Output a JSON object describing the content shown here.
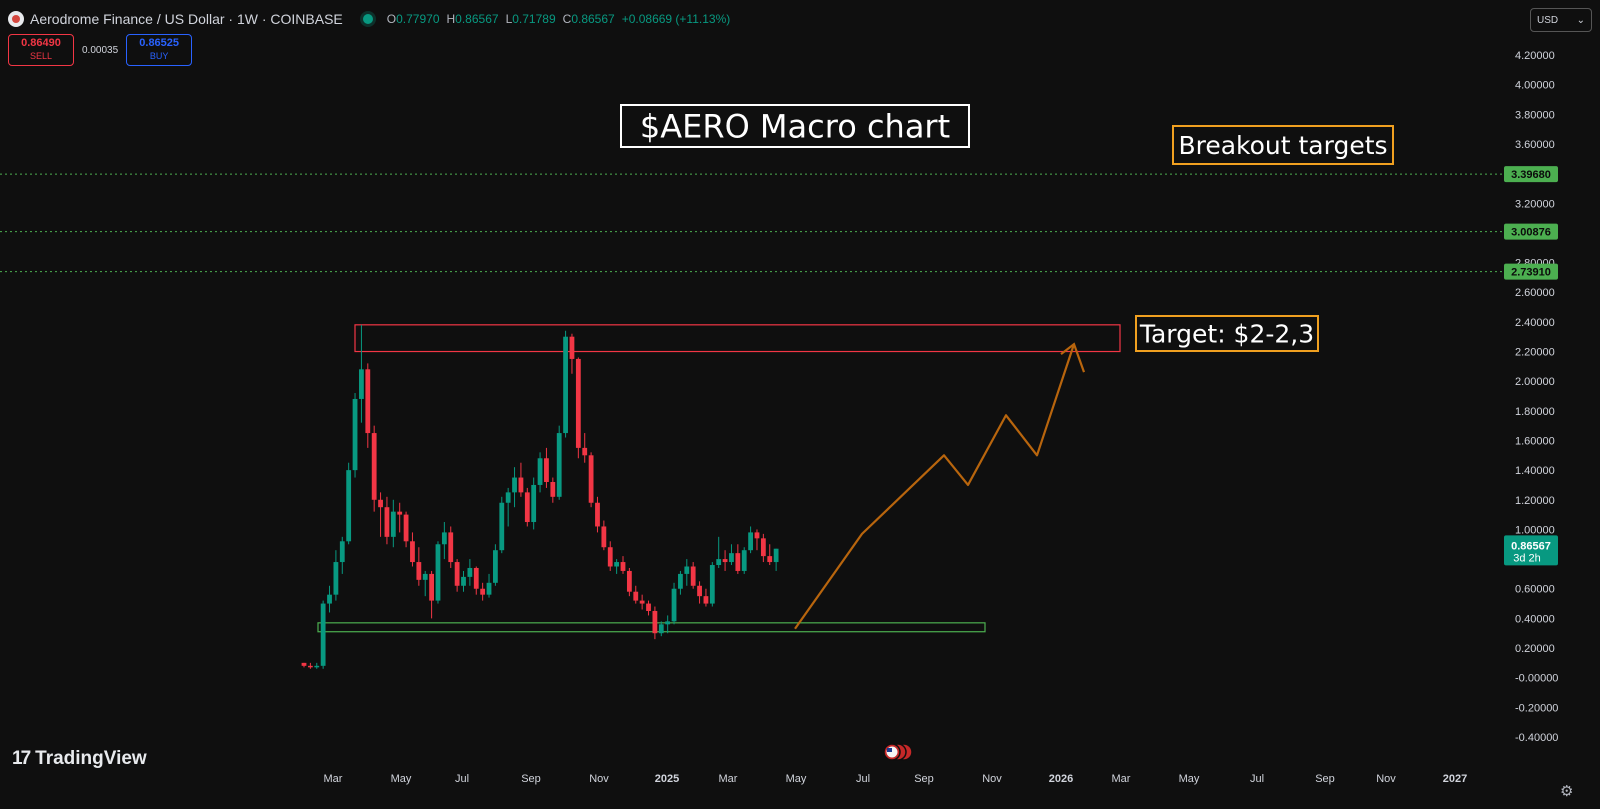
{
  "header": {
    "symbol_title": "Aerodrome Finance / US Dollar · 1W · COINBASE",
    "ohlc": [
      {
        "k": "O",
        "v": "0.77970"
      },
      {
        "k": "H",
        "v": "0.86567"
      },
      {
        "k": "L",
        "v": "0.71789"
      },
      {
        "k": "C",
        "v": "0.86567"
      }
    ],
    "change": "+0.08669 (+11.13%)"
  },
  "trade": {
    "sell_price": "0.86490",
    "sell_label": "SELL",
    "spread": "0.00035",
    "buy_price": "0.86525",
    "buy_label": "BUY"
  },
  "currency": {
    "label": "USD",
    "caret": "⌄"
  },
  "branding": {
    "name": "TradingView",
    "mark": "17"
  },
  "colors": {
    "up": "#089981",
    "down": "#f23645",
    "projection": "#b8650d",
    "level": "#4caf50"
  },
  "chart_data": {
    "type": "candlestick",
    "ylim": [
      -0.4,
      4.3
    ],
    "y_ticks": [
      "4.20000",
      "4.00000",
      "3.80000",
      "3.60000",
      "3.40000",
      "3.20000",
      "3.00000",
      "2.80000",
      "2.60000",
      "2.40000",
      "2.20000",
      "2.00000",
      "1.80000",
      "1.60000",
      "1.40000",
      "1.20000",
      "1.00000",
      "0.80000",
      "0.60000",
      "0.40000",
      "0.20000",
      "-0.00000",
      "-0.20000",
      "-0.40000"
    ],
    "x_ticks": [
      "Mar",
      "May",
      "Jul",
      "Sep",
      "Nov",
      "2025",
      "Mar",
      "May",
      "Jul",
      "Sep",
      "Nov",
      "2026",
      "Mar",
      "May",
      "Jul",
      "Sep",
      "Nov",
      "2027"
    ],
    "series": [
      {
        "values": [
          [
            0.1,
            0.1,
            0.07,
            0.08
          ],
          [
            0.08,
            0.1,
            0.06,
            0.07
          ],
          [
            0.07,
            0.1,
            0.06,
            0.08
          ],
          [
            0.08,
            0.52,
            0.06,
            0.5
          ],
          [
            0.5,
            0.62,
            0.44,
            0.56
          ],
          [
            0.56,
            0.86,
            0.52,
            0.78
          ],
          [
            0.78,
            0.95,
            0.7,
            0.92
          ],
          [
            0.92,
            1.45,
            0.9,
            1.4
          ],
          [
            1.4,
            1.92,
            1.35,
            1.88
          ],
          [
            1.88,
            2.38,
            1.72,
            2.08
          ],
          [
            2.08,
            2.12,
            1.55,
            1.65
          ],
          [
            1.65,
            1.7,
            1.12,
            1.2
          ],
          [
            1.2,
            1.25,
            0.95,
            1.15
          ],
          [
            1.15,
            1.22,
            0.9,
            0.95
          ],
          [
            0.95,
            1.2,
            0.88,
            1.12
          ],
          [
            1.12,
            1.18,
            0.98,
            1.1
          ],
          [
            1.1,
            1.12,
            0.88,
            0.92
          ],
          [
            0.92,
            0.98,
            0.75,
            0.78
          ],
          [
            0.78,
            0.88,
            0.62,
            0.66
          ],
          [
            0.66,
            0.72,
            0.55,
            0.7
          ],
          [
            0.7,
            0.72,
            0.4,
            0.52
          ],
          [
            0.52,
            0.92,
            0.5,
            0.9
          ],
          [
            0.9,
            1.05,
            0.8,
            0.98
          ],
          [
            0.98,
            1.02,
            0.74,
            0.78
          ],
          [
            0.78,
            0.8,
            0.58,
            0.62
          ],
          [
            0.62,
            0.72,
            0.58,
            0.68
          ],
          [
            0.68,
            0.8,
            0.62,
            0.74
          ],
          [
            0.74,
            0.75,
            0.56,
            0.6
          ],
          [
            0.6,
            0.64,
            0.52,
            0.56
          ],
          [
            0.56,
            0.7,
            0.54,
            0.64
          ],
          [
            0.64,
            0.9,
            0.62,
            0.86
          ],
          [
            0.86,
            1.22,
            0.84,
            1.18
          ],
          [
            1.18,
            1.28,
            1.02,
            1.25
          ],
          [
            1.25,
            1.42,
            1.15,
            1.35
          ],
          [
            1.35,
            1.45,
            1.22,
            1.25
          ],
          [
            1.25,
            1.28,
            1.02,
            1.05
          ],
          [
            1.05,
            1.35,
            1.0,
            1.3
          ],
          [
            1.3,
            1.52,
            1.25,
            1.48
          ],
          [
            1.48,
            1.55,
            1.28,
            1.32
          ],
          [
            1.32,
            1.35,
            1.18,
            1.22
          ],
          [
            1.22,
            1.7,
            1.2,
            1.65
          ],
          [
            1.65,
            2.34,
            1.62,
            2.3
          ],
          [
            2.3,
            2.32,
            2.05,
            2.15
          ],
          [
            2.15,
            2.16,
            1.48,
            1.55
          ],
          [
            1.55,
            1.65,
            1.45,
            1.5
          ],
          [
            1.5,
            1.52,
            1.15,
            1.18
          ],
          [
            1.18,
            1.22,
            0.98,
            1.02
          ],
          [
            1.02,
            1.06,
            0.86,
            0.88
          ],
          [
            0.88,
            0.92,
            0.72,
            0.75
          ],
          [
            0.75,
            0.8,
            0.7,
            0.78
          ],
          [
            0.78,
            0.82,
            0.7,
            0.72
          ],
          [
            0.72,
            0.74,
            0.55,
            0.58
          ],
          [
            0.58,
            0.62,
            0.5,
            0.52
          ],
          [
            0.52,
            0.56,
            0.46,
            0.5
          ],
          [
            0.5,
            0.52,
            0.42,
            0.45
          ],
          [
            0.45,
            0.48,
            0.26,
            0.3
          ],
          [
            0.3,
            0.38,
            0.28,
            0.36
          ],
          [
            0.36,
            0.42,
            0.3,
            0.38
          ],
          [
            0.38,
            0.64,
            0.36,
            0.6
          ],
          [
            0.6,
            0.72,
            0.56,
            0.7
          ],
          [
            0.7,
            0.8,
            0.62,
            0.75
          ],
          [
            0.75,
            0.78,
            0.6,
            0.62
          ],
          [
            0.62,
            0.65,
            0.5,
            0.55
          ],
          [
            0.55,
            0.6,
            0.48,
            0.5
          ],
          [
            0.5,
            0.78,
            0.48,
            0.76
          ],
          [
            0.76,
            0.95,
            0.74,
            0.8
          ],
          [
            0.8,
            0.86,
            0.72,
            0.78
          ],
          [
            0.78,
            0.9,
            0.76,
            0.84
          ],
          [
            0.84,
            0.9,
            0.7,
            0.72
          ],
          [
            0.72,
            0.88,
            0.7,
            0.86
          ],
          [
            0.86,
            1.02,
            0.84,
            0.98
          ],
          [
            0.98,
            1.0,
            0.86,
            0.94
          ],
          [
            0.94,
            0.97,
            0.78,
            0.82
          ],
          [
            0.82,
            0.9,
            0.76,
            0.78
          ],
          [
            0.78,
            0.87,
            0.72,
            0.87
          ]
        ]
      }
    ],
    "horizontal_levels": [
      {
        "price": 3.3968,
        "label": "3.39680"
      },
      {
        "price": 3.00876,
        "label": "3.00876"
      },
      {
        "price": 2.7391,
        "label": "2.73910"
      }
    ],
    "zones": [
      {
        "name": "resistance",
        "from": 2.2,
        "to": 2.38
      },
      {
        "name": "support",
        "from": 0.31,
        "to": 0.37
      }
    ],
    "projection_path": [
      0.33,
      0.97,
      1.5,
      1.3,
      1.77,
      1.5,
      2.25
    ],
    "current_price": {
      "label": "0.86567",
      "countdown": "3d 2h",
      "price": 0.86567
    },
    "annotations": {
      "title": "$AERO Macro chart",
      "breakout": "Breakout targets",
      "target": "Target: $2-2,3"
    }
  }
}
